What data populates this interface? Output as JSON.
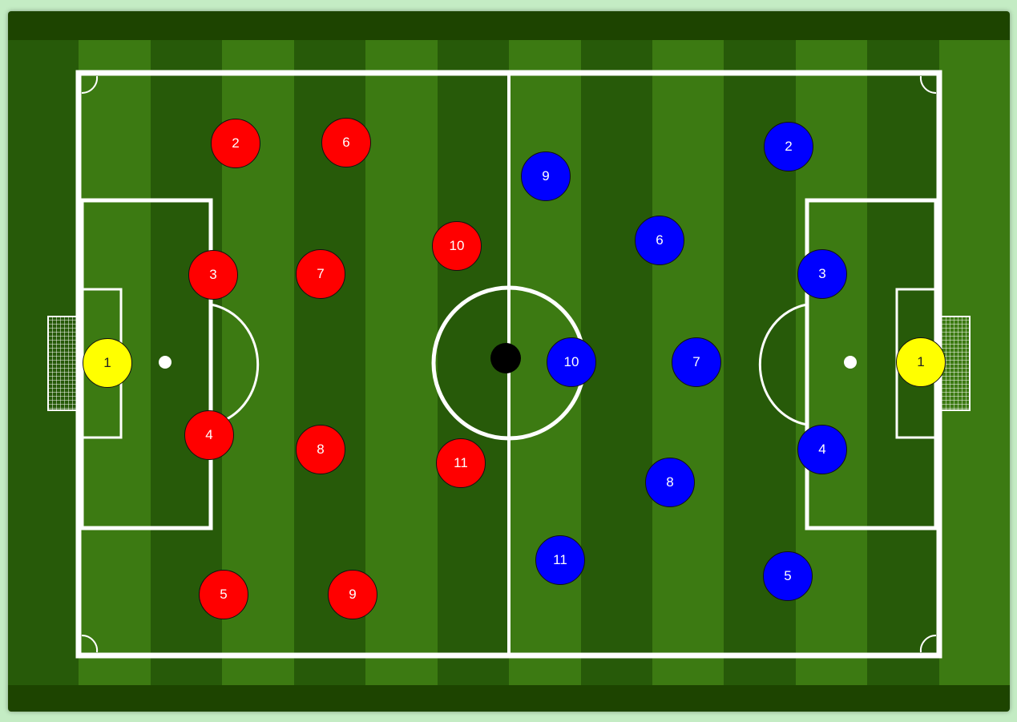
{
  "colors": {
    "page_background": "#c4ecc4",
    "border_grass": "#1d4400",
    "stripe_dark": "#275a09",
    "stripe_light": "#3c7a12",
    "lines": "#ffffff",
    "home_team": "#ff0000",
    "away_team": "#0000ff",
    "goalkeeper": "#ffff00",
    "ball": "#000000"
  },
  "home_team": {
    "color": "#ff0000",
    "keeper_color": "#ffff00",
    "players": [
      {
        "number": "1",
        "keeper": true
      },
      {
        "number": "2"
      },
      {
        "number": "3"
      },
      {
        "number": "4"
      },
      {
        "number": "5"
      },
      {
        "number": "6"
      },
      {
        "number": "7"
      },
      {
        "number": "8"
      },
      {
        "number": "9"
      },
      {
        "number": "10"
      },
      {
        "number": "11"
      }
    ]
  },
  "away_team": {
    "color": "#0000ff",
    "keeper_color": "#ffff00",
    "players": [
      {
        "number": "1",
        "keeper": true
      },
      {
        "number": "2"
      },
      {
        "number": "3"
      },
      {
        "number": "4"
      },
      {
        "number": "5"
      },
      {
        "number": "6"
      },
      {
        "number": "7"
      },
      {
        "number": "8"
      },
      {
        "number": "9"
      },
      {
        "number": "10"
      },
      {
        "number": "11"
      }
    ]
  },
  "ball": {
    "color": "#000000"
  }
}
